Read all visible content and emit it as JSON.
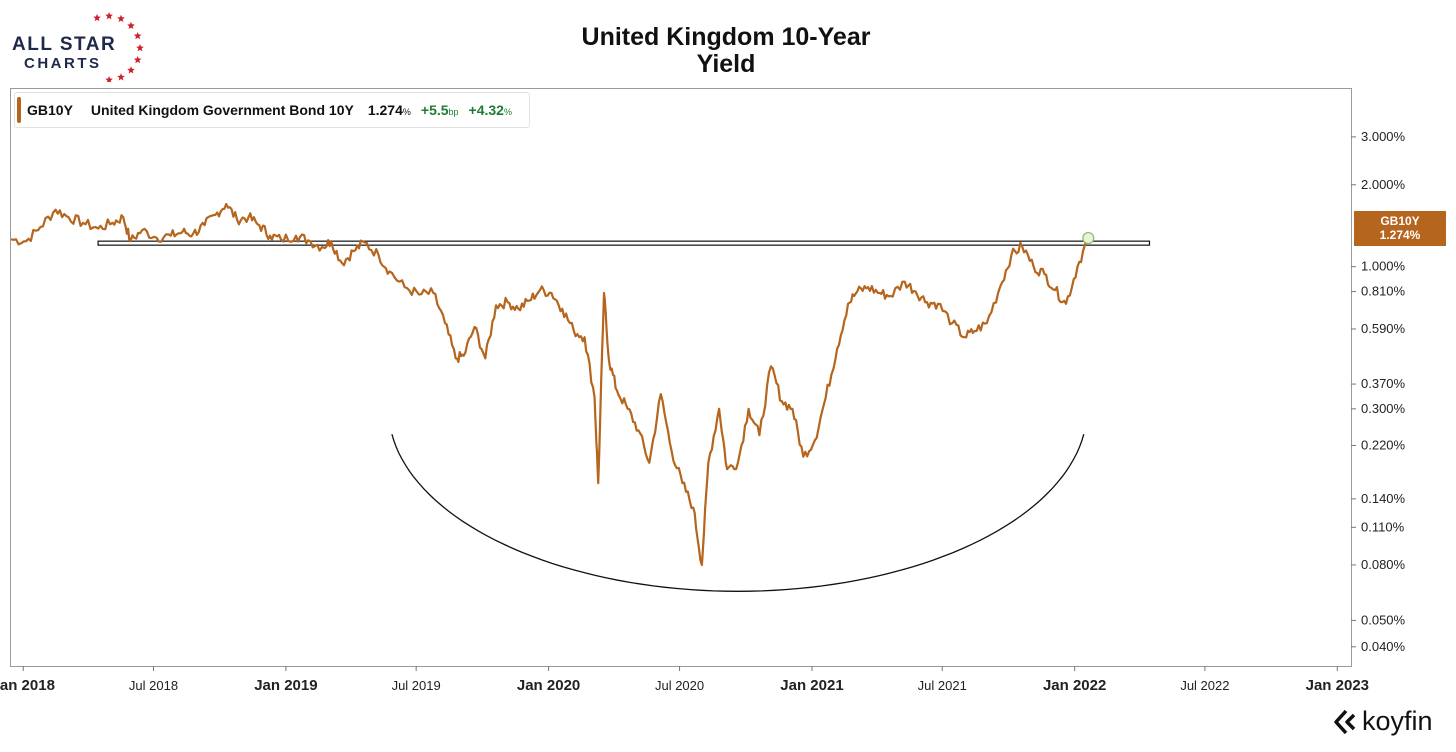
{
  "brand": {
    "line1": "ALL STAR",
    "line2": "CHARTS",
    "navy": "#1f2a4a",
    "red": "#d0202d"
  },
  "chart_data": {
    "type": "line",
    "title": "United Kingdom 10-Year Yield",
    "title_lines": [
      "United Kingdom 10-Year",
      "Yield"
    ],
    "xlabel": "",
    "ylabel": "",
    "y_scale": "log",
    "x_range": [
      "2017-12-15",
      "2023-01-20"
    ],
    "y_range_percent": [
      0.034,
      4.5
    ],
    "grid": false,
    "x_ticks": [
      {
        "date": "2018-01-01",
        "label": "Jan 2018",
        "major": true
      },
      {
        "date": "2018-07-01",
        "label": "Jul 2018",
        "major": false
      },
      {
        "date": "2019-01-01",
        "label": "Jan 2019",
        "major": true
      },
      {
        "date": "2019-07-01",
        "label": "Jul 2019",
        "major": false
      },
      {
        "date": "2020-01-01",
        "label": "Jan 2020",
        "major": true
      },
      {
        "date": "2020-07-01",
        "label": "Jul 2020",
        "major": false
      },
      {
        "date": "2021-01-01",
        "label": "Jan 2021",
        "major": true
      },
      {
        "date": "2021-07-01",
        "label": "Jul 2021",
        "major": false
      },
      {
        "date": "2022-01-01",
        "label": "Jan 2022",
        "major": true
      },
      {
        "date": "2022-07-01",
        "label": "Jul 2022",
        "major": false
      },
      {
        "date": "2023-01-01",
        "label": "Jan 2023",
        "major": true
      }
    ],
    "y_ticks": [
      {
        "value": 3.0,
        "label": "3.000%"
      },
      {
        "value": 2.0,
        "label": "2.000%"
      },
      {
        "value": 1.0,
        "label": "1.000%"
      },
      {
        "value": 0.81,
        "label": "0.810%"
      },
      {
        "value": 0.59,
        "label": "0.590%"
      },
      {
        "value": 0.37,
        "label": "0.370%"
      },
      {
        "value": 0.3,
        "label": "0.300%"
      },
      {
        "value": 0.22,
        "label": "0.220%"
      },
      {
        "value": 0.14,
        "label": "0.140%"
      },
      {
        "value": 0.11,
        "label": "0.110%"
      },
      {
        "value": 0.08,
        "label": "0.080%"
      },
      {
        "value": 0.05,
        "label": "0.050%"
      },
      {
        "value": 0.04,
        "label": "0.040%"
      }
    ],
    "series": [
      {
        "name": "United Kingdom Government Bond 10Y",
        "ticker": "GB10Y",
        "color": "#b5651d",
        "points": [
          [
            "2017-12-15",
            1.26
          ],
          [
            "2018-01-05",
            1.24
          ],
          [
            "2018-01-25",
            1.4
          ],
          [
            "2018-02-15",
            1.62
          ],
          [
            "2018-03-05",
            1.52
          ],
          [
            "2018-03-25",
            1.45
          ],
          [
            "2018-04-15",
            1.38
          ],
          [
            "2018-05-05",
            1.45
          ],
          [
            "2018-05-20",
            1.52
          ],
          [
            "2018-05-30",
            1.24
          ],
          [
            "2018-06-15",
            1.36
          ],
          [
            "2018-07-05",
            1.28
          ],
          [
            "2018-07-25",
            1.3
          ],
          [
            "2018-08-10",
            1.34
          ],
          [
            "2018-08-25",
            1.32
          ],
          [
            "2018-09-10",
            1.42
          ],
          [
            "2018-09-25",
            1.55
          ],
          [
            "2018-10-10",
            1.7
          ],
          [
            "2018-10-25",
            1.49
          ],
          [
            "2018-11-10",
            1.52
          ],
          [
            "2018-11-25",
            1.42
          ],
          [
            "2018-12-10",
            1.3
          ],
          [
            "2018-12-25",
            1.26
          ],
          [
            "2019-01-15",
            1.3
          ],
          [
            "2019-02-01",
            1.25
          ],
          [
            "2019-02-20",
            1.18
          ],
          [
            "2019-03-05",
            1.24
          ],
          [
            "2019-03-20",
            1.03
          ],
          [
            "2019-04-05",
            1.14
          ],
          [
            "2019-04-20",
            1.23
          ],
          [
            "2019-05-10",
            1.1
          ],
          [
            "2019-05-25",
            0.96
          ],
          [
            "2019-06-15",
            0.84
          ],
          [
            "2019-07-05",
            0.79
          ],
          [
            "2019-07-25",
            0.8
          ],
          [
            "2019-08-10",
            0.62
          ],
          [
            "2019-08-25",
            0.46
          ],
          [
            "2019-09-05",
            0.47
          ],
          [
            "2019-09-20",
            0.6
          ],
          [
            "2019-10-05",
            0.46
          ],
          [
            "2019-10-20",
            0.72
          ],
          [
            "2019-11-05",
            0.74
          ],
          [
            "2019-11-20",
            0.7
          ],
          [
            "2019-12-05",
            0.75
          ],
          [
            "2019-12-20",
            0.82
          ],
          [
            "2020-01-05",
            0.8
          ],
          [
            "2020-01-20",
            0.7
          ],
          [
            "2020-02-05",
            0.58
          ],
          [
            "2020-02-20",
            0.55
          ],
          [
            "2020-03-05",
            0.33
          ],
          [
            "2020-03-10",
            0.16
          ],
          [
            "2020-03-18",
            0.8
          ],
          [
            "2020-03-25",
            0.45
          ],
          [
            "2020-04-05",
            0.35
          ],
          [
            "2020-04-20",
            0.3
          ],
          [
            "2020-05-05",
            0.25
          ],
          [
            "2020-05-20",
            0.19
          ],
          [
            "2020-06-05",
            0.34
          ],
          [
            "2020-06-20",
            0.21
          ],
          [
            "2020-07-05",
            0.16
          ],
          [
            "2020-07-20",
            0.13
          ],
          [
            "2020-08-01",
            0.08
          ],
          [
            "2020-08-10",
            0.19
          ],
          [
            "2020-08-25",
            0.3
          ],
          [
            "2020-09-05",
            0.18
          ],
          [
            "2020-09-20",
            0.19
          ],
          [
            "2020-10-05",
            0.3
          ],
          [
            "2020-10-20",
            0.24
          ],
          [
            "2020-11-05",
            0.43
          ],
          [
            "2020-11-20",
            0.32
          ],
          [
            "2020-12-05",
            0.3
          ],
          [
            "2020-12-20",
            0.2
          ],
          [
            "2021-01-05",
            0.23
          ],
          [
            "2021-01-20",
            0.33
          ],
          [
            "2021-02-05",
            0.5
          ],
          [
            "2021-02-20",
            0.73
          ],
          [
            "2021-03-05",
            0.81
          ],
          [
            "2021-03-20",
            0.84
          ],
          [
            "2021-04-05",
            0.8
          ],
          [
            "2021-04-20",
            0.78
          ],
          [
            "2021-05-10",
            0.88
          ],
          [
            "2021-05-25",
            0.81
          ],
          [
            "2021-06-10",
            0.74
          ],
          [
            "2021-06-25",
            0.73
          ],
          [
            "2021-07-15",
            0.62
          ],
          [
            "2021-08-01",
            0.55
          ],
          [
            "2021-08-15",
            0.58
          ],
          [
            "2021-09-01",
            0.62
          ],
          [
            "2021-09-20",
            0.85
          ],
          [
            "2021-10-05",
            1.1
          ],
          [
            "2021-10-20",
            1.19
          ],
          [
            "2021-11-05",
            1.0
          ],
          [
            "2021-11-20",
            0.94
          ],
          [
            "2021-12-05",
            0.82
          ],
          [
            "2021-12-20",
            0.73
          ],
          [
            "2022-01-05",
            1.0
          ],
          [
            "2022-01-20",
            1.274
          ]
        ]
      }
    ],
    "annotations": {
      "resistance_level_percent": 1.22,
      "resistance_from": "2018-04-15",
      "resistance_to": "2022-04-15",
      "rounded_bottom_curve": true
    }
  },
  "legend": {
    "ticker": "GB10Y",
    "name": "United Kingdom Government Bond 10Y",
    "value": "1.274",
    "value_unit": "%",
    "change_bp": "+5.5",
    "change_bp_unit": "bp",
    "change_pct": "+4.32",
    "change_pct_unit": "%"
  },
  "last_price_tag": {
    "ticker": "GB10Y",
    "value": "1.274%",
    "color": "#b5651d"
  },
  "footer": {
    "logo_text": "koyfin"
  }
}
